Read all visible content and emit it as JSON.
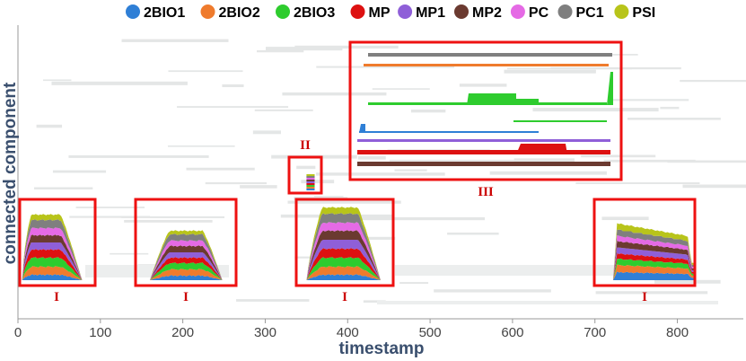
{
  "chart_data": {
    "type": "area",
    "xlabel": "timestamp",
    "ylabel": "connected component",
    "xlim": [
      0,
      880
    ],
    "x_ticks": [
      0,
      100,
      200,
      300,
      400,
      500,
      600,
      700,
      800
    ],
    "legend_position": "top",
    "series": [
      {
        "name": "2BIO1",
        "color": "#2f7fd6"
      },
      {
        "name": "2BIO2",
        "color": "#ef7b2d"
      },
      {
        "name": "2BIO3",
        "color": "#2ecc2e"
      },
      {
        "name": "MP",
        "color": "#dd1111"
      },
      {
        "name": "MP1",
        "color": "#8f5fd8"
      },
      {
        "name": "MP2",
        "color": "#6b3a30"
      },
      {
        "name": "PC",
        "color": "#e56ae5"
      },
      {
        "name": "PC1",
        "color": "#7f7f7f"
      },
      {
        "name": "PSI",
        "color": "#b8c41a"
      }
    ],
    "groups": [
      {
        "label": "I",
        "x_start": 5,
        "x_end": 78,
        "layer_heights": [
          6,
          9,
          10,
          9,
          8,
          8,
          8,
          9,
          6
        ]
      },
      {
        "label": "I",
        "x_start": 160,
        "x_end": 248,
        "layer_heights": [
          5,
          7,
          7,
          6,
          6,
          7,
          6,
          7,
          4
        ]
      },
      {
        "label": "I",
        "x_start": 350,
        "x_end": 440,
        "layer_heights": [
          6,
          9,
          10,
          10,
          10,
          10,
          9,
          10,
          7
        ]
      },
      {
        "label": "I",
        "x_start": 722,
        "x_end": 820,
        "layer_heights": [
          9,
          8,
          7,
          6,
          7,
          7,
          6,
          7,
          7
        ]
      },
      {
        "label": "II",
        "x_start": 350,
        "x_end": 360,
        "layer_heights": [
          2,
          2,
          2,
          2,
          2,
          2,
          2,
          2,
          2
        ]
      }
    ],
    "inset_label": "III"
  },
  "legend": [
    {
      "label": "2BIO1",
      "color": "#2f7fd6"
    },
    {
      "label": "2BIO2",
      "color": "#ef7b2d"
    },
    {
      "label": "2BIO3",
      "color": "#2ecc2e"
    },
    {
      "label": "MP",
      "color": "#dd1111"
    },
    {
      "label": "MP1",
      "color": "#8f5fd8"
    },
    {
      "label": "MP2",
      "color": "#6b3a30"
    },
    {
      "label": "PC",
      "color": "#e56ae5"
    },
    {
      "label": "PC1",
      "color": "#7f7f7f"
    },
    {
      "label": "PSI",
      "color": "#b8c41a"
    }
  ],
  "annotations": {
    "region_I": "I",
    "region_II": "II",
    "region_III": "III"
  }
}
